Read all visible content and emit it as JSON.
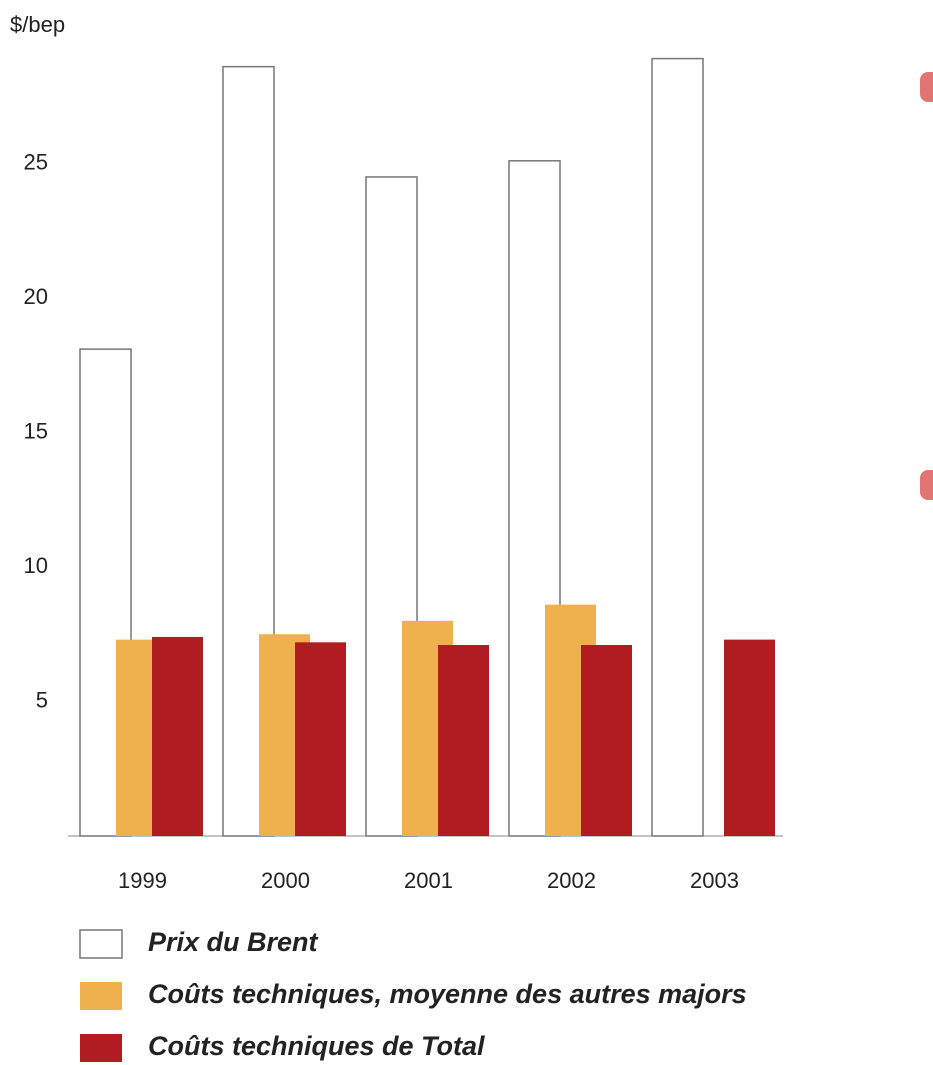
{
  "chart_data": {
    "type": "bar",
    "y_label": "$/bep",
    "categories": [
      "1999",
      "2000",
      "2001",
      "2002",
      "2003"
    ],
    "series": [
      {
        "name": "Prix du Brent",
        "color": "#ffffff",
        "values": [
          18.1,
          28.6,
          24.5,
          25.1,
          28.9
        ]
      },
      {
        "name": "Coûts techniques, moyenne des autres majors",
        "color": "#efb04e",
        "values": [
          7.3,
          7.5,
          8.0,
          8.6,
          null
        ]
      },
      {
        "name": "Coûts techniques de Total",
        "color": "#b01c20",
        "values": [
          7.4,
          7.2,
          7.1,
          7.1,
          7.3
        ]
      }
    ],
    "ylim": [
      0,
      30
    ],
    "yticks": [
      5,
      10,
      15,
      20,
      25
    ]
  }
}
